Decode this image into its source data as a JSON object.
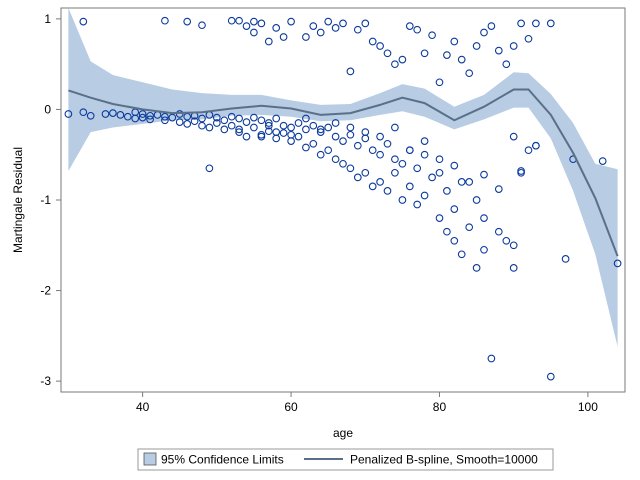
{
  "chart_data": {
    "type": "scatter",
    "title": "",
    "xlabel": "age",
    "ylabel": "Martingale Residual",
    "xlim": [
      29,
      105
    ],
    "ylim": [
      -3.12,
      1.12
    ],
    "x_ticks": [
      40,
      60,
      80,
      100
    ],
    "y_ticks": [
      1,
      0,
      -1,
      -2,
      -3
    ],
    "grid": false,
    "legend_position": "bottom",
    "legend": [
      {
        "label": "95% Confidence Limits",
        "kind": "band"
      },
      {
        "label": "Penalized B-spline, Smooth=10000",
        "kind": "line"
      }
    ],
    "colors": {
      "points": "#0b3a9c",
      "band_fill": "#b8cce4",
      "spline": "#5a7089",
      "frame": "#7a7a7a"
    },
    "spline": {
      "x": [
        30,
        33,
        36,
        40,
        44,
        48,
        52,
        56,
        60,
        64,
        68,
        72,
        75,
        78,
        82,
        86,
        90,
        92,
        95,
        98,
        101,
        104
      ],
      "y": [
        0.21,
        0.13,
        0.06,
        0.0,
        -0.04,
        -0.03,
        0.01,
        0.04,
        0.01,
        -0.06,
        -0.04,
        0.05,
        0.13,
        0.07,
        -0.12,
        0.03,
        0.22,
        0.22,
        -0.06,
        -0.48,
        -0.98,
        -1.62
      ]
    },
    "band": {
      "x": [
        30,
        33,
        36,
        40,
        44,
        48,
        52,
        56,
        60,
        64,
        68,
        72,
        75,
        78,
        82,
        86,
        90,
        92,
        95,
        98,
        101,
        104
      ],
      "upper": [
        1.12,
        0.53,
        0.38,
        0.3,
        0.22,
        0.18,
        0.16,
        0.16,
        0.1,
        0.05,
        0.06,
        0.18,
        0.28,
        0.23,
        0.03,
        0.16,
        0.41,
        0.4,
        0.17,
        -0.15,
        -0.6,
        -0.66
      ],
      "lower": [
        -0.68,
        -0.25,
        -0.2,
        -0.16,
        -0.12,
        -0.11,
        -0.07,
        -0.06,
        -0.08,
        -0.13,
        -0.12,
        -0.06,
        -0.02,
        -0.08,
        -0.22,
        -0.11,
        0.02,
        0.02,
        -0.32,
        -0.9,
        -1.6,
        -2.62
      ]
    },
    "series": [
      {
        "x": [
          30,
          32,
          33,
          35,
          36,
          37,
          38,
          39,
          39,
          40,
          40,
          41,
          41,
          42,
          43,
          43,
          44,
          45,
          45,
          46,
          46,
          47,
          47,
          48,
          48,
          49,
          49,
          50,
          50,
          51,
          51,
          52,
          52,
          53,
          53,
          54,
          54,
          55,
          55,
          56,
          56,
          57,
          57,
          58,
          58,
          59,
          59,
          60,
          60,
          61,
          61,
          62,
          62,
          63,
          63,
          64,
          64,
          65,
          65,
          66,
          66,
          67,
          67,
          68,
          68,
          69,
          69,
          70,
          70,
          71,
          71,
          72,
          72,
          73,
          73,
          74,
          74,
          75,
          75,
          76,
          76,
          77,
          77,
          78,
          78,
          79,
          80,
          80,
          81,
          81,
          82,
          82,
          83,
          83,
          84,
          85,
          85,
          86,
          86,
          87,
          88,
          89,
          90,
          90,
          91,
          92,
          93
        ],
        "y": [
          -0.05,
          -0.03,
          -0.07,
          -0.05,
          -0.04,
          -0.06,
          -0.08,
          -0.03,
          -0.1,
          -0.05,
          -0.09,
          -0.07,
          -0.11,
          -0.06,
          -0.08,
          -0.12,
          -0.09,
          -0.05,
          -0.14,
          -0.08,
          -0.16,
          -0.07,
          -0.13,
          -0.1,
          -0.18,
          -0.06,
          -0.2,
          -0.09,
          -0.15,
          -0.12,
          -0.22,
          -0.08,
          -0.18,
          -0.1,
          -0.25,
          -0.14,
          -0.3,
          -0.09,
          -0.2,
          -0.12,
          -0.28,
          -0.15,
          -0.24,
          -0.1,
          -0.32,
          -0.18,
          -0.26,
          -0.2,
          -0.35,
          -0.15,
          -0.3,
          -0.22,
          -0.42,
          -0.18,
          -0.38,
          -0.25,
          -0.5,
          -0.2,
          -0.45,
          -0.3,
          -0.55,
          -0.35,
          -0.6,
          -0.28,
          -0.65,
          -0.4,
          -0.75,
          -0.32,
          -0.7,
          -0.45,
          -0.85,
          -0.5,
          -0.8,
          -0.38,
          -0.9,
          -0.55,
          -0.7,
          -0.6,
          -1.0,
          -0.45,
          -0.85,
          -0.65,
          -1.05,
          -0.5,
          -0.95,
          -0.75,
          -0.7,
          -1.2,
          -0.9,
          -1.35,
          -1.1,
          -1.45,
          -0.8,
          -1.6,
          -1.3,
          -1.0,
          -1.75,
          -1.2,
          -1.55,
          -2.75,
          -1.35,
          -1.45,
          -1.5,
          -1.75,
          -0.7,
          -0.45,
          -0.4
        ],
        "name": ""
      },
      {
        "x": [
          32,
          43,
          46,
          48,
          52,
          53,
          54,
          55,
          55,
          56,
          57,
          58,
          59,
          60,
          62,
          63,
          64,
          65,
          66,
          67,
          68,
          69,
          70,
          71,
          72,
          73,
          74,
          75,
          76,
          77,
          78,
          79,
          80,
          81,
          82,
          83,
          84,
          85,
          86,
          87,
          88,
          89,
          90,
          91,
          92,
          93,
          95
        ],
        "y": [
          0.97,
          0.98,
          0.97,
          0.93,
          0.98,
          0.98,
          0.92,
          0.97,
          0.85,
          0.95,
          0.75,
          0.9,
          0.8,
          0.97,
          0.8,
          0.92,
          0.85,
          0.97,
          0.9,
          0.95,
          0.42,
          0.88,
          0.95,
          0.75,
          0.7,
          0.62,
          0.5,
          0.55,
          0.92,
          0.88,
          0.62,
          0.82,
          0.3,
          0.6,
          0.75,
          0.55,
          0.4,
          0.7,
          0.85,
          0.92,
          0.65,
          0.5,
          0.7,
          0.95,
          0.78,
          0.95,
          0.95
        ],
        "name": ""
      },
      {
        "x": [
          49,
          53,
          56,
          57,
          58,
          60,
          62,
          64,
          66,
          68,
          70,
          72,
          74,
          76,
          78,
          80,
          82,
          84,
          86,
          88,
          90,
          91,
          93,
          95,
          97,
          98,
          102,
          104
        ],
        "y": [
          -0.65,
          -0.22,
          -0.3,
          -0.18,
          -0.25,
          -0.28,
          -0.1,
          -0.22,
          -0.15,
          -0.2,
          -0.25,
          -0.3,
          -0.2,
          -0.45,
          -0.35,
          -0.55,
          -0.62,
          -0.8,
          -0.72,
          -0.88,
          -0.3,
          -0.68,
          -0.4,
          -2.95,
          -1.65,
          -0.55,
          -0.57,
          -1.7
        ],
        "name": ""
      }
    ]
  }
}
